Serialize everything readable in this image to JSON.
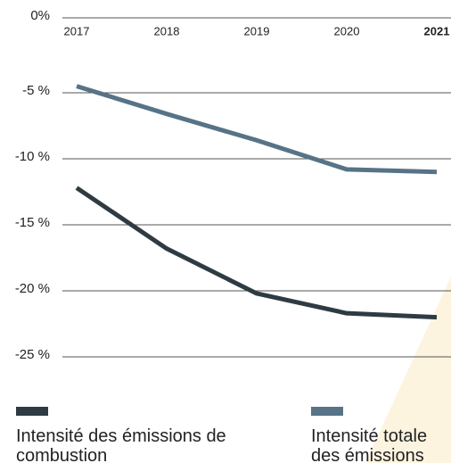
{
  "chart_data": {
    "type": "line",
    "categories": [
      "2017",
      "2018",
      "2019",
      "2020",
      "2021"
    ],
    "series": [
      {
        "name": "Intensité des émissions de combustion",
        "color": "#2f3b43",
        "values": [
          -12.2,
          -16.8,
          -20.2,
          -21.7,
          -22.0
        ]
      },
      {
        "name": "Intensité totale des émissions",
        "color": "#577387",
        "values": [
          -4.5,
          -6.6,
          -8.6,
          -10.8,
          -11.0
        ]
      }
    ],
    "ylim": [
      -25,
      0
    ],
    "yticks": [
      {
        "value": 0,
        "label": "0%"
      },
      {
        "value": -5,
        "label": "-5 %"
      },
      {
        "value": -10,
        "label": "-10 %"
      },
      {
        "value": -15,
        "label": "-15 %"
      },
      {
        "value": -20,
        "label": "-20 %"
      },
      {
        "value": -25,
        "label": "-25 %"
      }
    ],
    "grid": true
  }
}
